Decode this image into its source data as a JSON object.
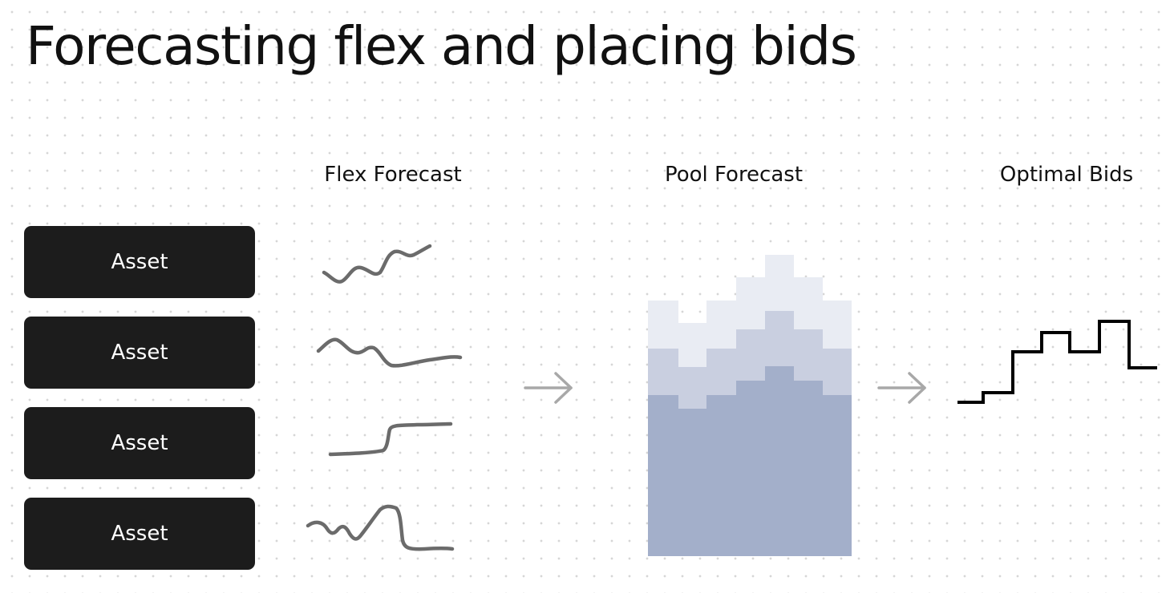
{
  "title": "Forecasting flex and placing bids",
  "columns": {
    "flex_forecast": "Flex Forecast",
    "pool_forecast": "Pool Forecast",
    "optimal_bids": "Optimal Bids"
  },
  "assets": [
    {
      "label": "Asset"
    },
    {
      "label": "Asset"
    },
    {
      "label": "Asset"
    },
    {
      "label": "Asset"
    }
  ],
  "icons": {
    "arrow": "arrow-right-icon"
  },
  "colors": {
    "asset_box": "#1c1c1c",
    "asset_text": "#ffffff",
    "sparkline": "#6b6b6b",
    "arrow": "#a8a8a8",
    "pool_base": "#a3afca",
    "pool_middle": "#c9cfe0",
    "pool_top": "#e9ecf3",
    "bids_line": "#000000"
  }
}
